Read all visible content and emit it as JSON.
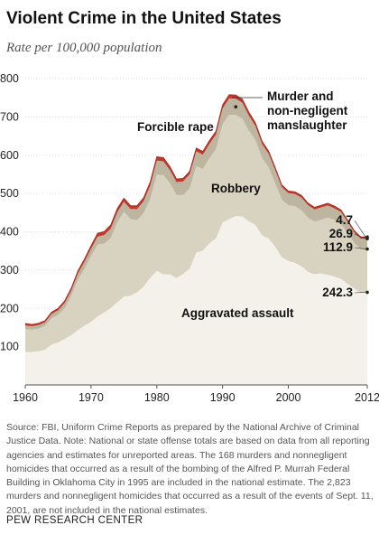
{
  "chart_data": {
    "type": "area",
    "stacked": true,
    "title": "Violent Crime in the United States",
    "subtitle": "Rate per 100,000 population",
    "xlim": [
      1960,
      2012
    ],
    "ylim": [
      0,
      800
    ],
    "x_ticks": [
      "1960",
      "1970",
      "1980",
      "1990",
      "2000",
      "2012"
    ],
    "y_ticks": [
      "100",
      "200",
      "300",
      "400",
      "500",
      "600",
      "700",
      "800"
    ],
    "grid": true,
    "x": [
      1960,
      1961,
      1962,
      1963,
      1964,
      1965,
      1966,
      1967,
      1968,
      1969,
      1970,
      1971,
      1972,
      1973,
      1974,
      1975,
      1976,
      1977,
      1978,
      1979,
      1980,
      1981,
      1982,
      1983,
      1984,
      1985,
      1986,
      1987,
      1988,
      1989,
      1990,
      1991,
      1992,
      1993,
      1994,
      1995,
      1996,
      1997,
      1998,
      1999,
      2000,
      2001,
      2002,
      2003,
      2004,
      2005,
      2006,
      2007,
      2008,
      2009,
      2010,
      2011,
      2012
    ],
    "series": [
      {
        "name": "Aggravated assault",
        "color": "#f3f1ea",
        "values": [
          86,
          86,
          88,
          92,
          106,
          111,
          120,
          130,
          143,
          155,
          165,
          179,
          189,
          201,
          216,
          231,
          233,
          242,
          257,
          280,
          298,
          289,
          289,
          279,
          290,
          304,
          346,
          351,
          370,
          383,
          424,
          433,
          441,
          440,
          427,
          418,
          391,
          382,
          361,
          334,
          324,
          319,
          310,
          295,
          289,
          291,
          288,
          283,
          277,
          264,
          252,
          241,
          242
        ]
      },
      {
        "name": "Robbery",
        "color": "#d8d3c1",
        "values": [
          60,
          58,
          59,
          62,
          68,
          72,
          81,
          103,
          132,
          148,
          172,
          188,
          180,
          183,
          209,
          221,
          200,
          188,
          192,
          206,
          251,
          259,
          238,
          217,
          206,
          209,
          226,
          213,
          222,
          233,
          257,
          273,
          264,
          256,
          237,
          221,
          202,
          186,
          166,
          150,
          145,
          148,
          146,
          142,
          137,
          141,
          149,
          148,
          145,
          133,
          119,
          114,
          113
        ]
      },
      {
        "name": "Forcible rape",
        "color": "#bdb59f",
        "values": [
          9.6,
          9.4,
          9.4,
          9.4,
          11.2,
          12.1,
          13.2,
          14.0,
          15.9,
          18.5,
          18.7,
          20.5,
          22.5,
          24.5,
          26.2,
          26.3,
          26.6,
          29.4,
          31.0,
          34.7,
          36.8,
          36.0,
          34.0,
          33.7,
          35.7,
          37.1,
          38.1,
          37.4,
          37.6,
          38.1,
          41.1,
          42.3,
          42.8,
          41.1,
          39.3,
          37.1,
          36.3,
          35.9,
          34.5,
          32.8,
          32.0,
          31.8,
          33.1,
          32.3,
          32.4,
          31.8,
          31.7,
          30.5,
          29.8,
          29.1,
          27.7,
          27.0,
          26.9
        ]
      },
      {
        "name": "Murder and non-negligent manslaughter",
        "color": "#c0392b",
        "values": [
          5.1,
          4.8,
          4.6,
          4.6,
          4.9,
          5.1,
          5.6,
          6.2,
          6.9,
          7.3,
          7.9,
          8.6,
          9.0,
          9.4,
          9.8,
          9.6,
          8.7,
          8.8,
          9.0,
          9.7,
          10.2,
          9.8,
          9.1,
          8.3,
          7.9,
          8.0,
          8.6,
          8.3,
          8.4,
          8.7,
          9.4,
          9.8,
          9.3,
          9.5,
          9.0,
          8.2,
          7.4,
          6.8,
          6.3,
          5.7,
          5.5,
          5.6,
          5.6,
          5.7,
          5.5,
          5.6,
          5.8,
          5.7,
          5.4,
          5.0,
          4.8,
          4.7,
          4.7
        ]
      }
    ],
    "labels": {
      "murder": [
        "Murder and",
        "non-negligent",
        "manslaughter"
      ],
      "rape": "Forcible rape",
      "robbery": "Robbery",
      "assault": "Aggravated assault"
    },
    "end_values": {
      "murder": "4.7",
      "rape": "26.9",
      "robbery": "112.9",
      "assault": "242.3"
    },
    "annotation_dot_year": 1992
  },
  "source_note": "Source: FBI, Uniform Crime Reports as prepared by the National Archive of Criminal Justice Data. Note: National or state offense totals are based on data from all reporting agencies and estimates for unreported areas. The 168 murders and nonnegligent homicides that occurred as a result of the bombing of the Alfred P. Murrah Federal Building in Oklahoma City in 1995 are included in the national estimate. The 2,823 murders and nonnegligent homicides that occurred as a result of the events of Sept. 11, 2001, are not included in the national estimates.",
  "brand": "PEW RESEARCH CENTER"
}
